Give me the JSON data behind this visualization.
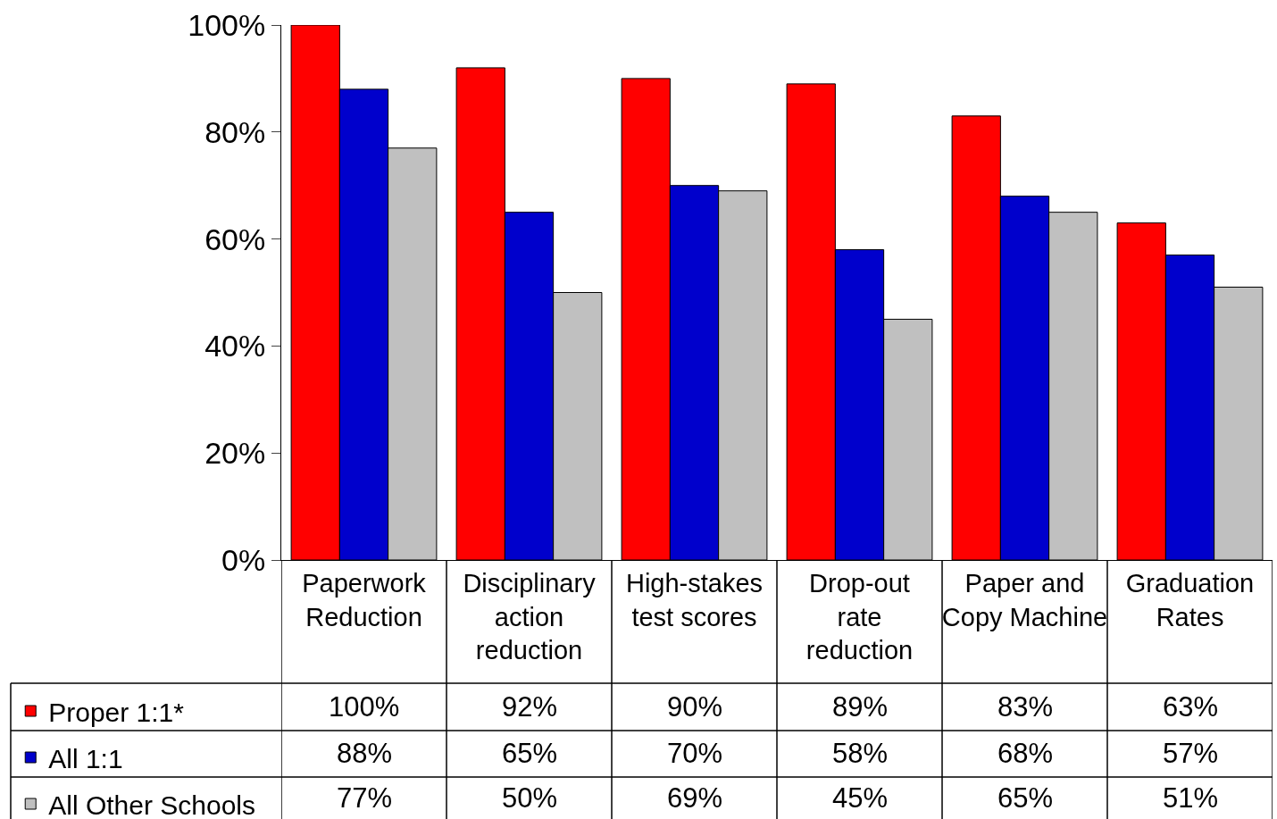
{
  "chart_data": {
    "type": "bar",
    "categories": [
      "Paperwork Reduction",
      "Disciplinary action reduction",
      "High-stakes test scores",
      "Drop-out rate reduction",
      "Paper and Copy Machine",
      "Graduation Rates"
    ],
    "series": [
      {
        "name": "Proper 1:1*",
        "color": "#ff0000",
        "values": [
          100,
          92,
          90,
          89,
          83,
          63
        ],
        "value_labels": [
          "100%",
          "92%",
          "90%",
          "89%",
          "83%",
          "63%"
        ]
      },
      {
        "name": "All 1:1",
        "color": "#0000cc",
        "values": [
          88,
          65,
          70,
          58,
          68,
          57
        ],
        "value_labels": [
          "88%",
          "65%",
          "70%",
          "58%",
          "68%",
          "57%"
        ]
      },
      {
        "name": "All Other Schools",
        "color": "#c0c0c0",
        "values": [
          77,
          50,
          69,
          45,
          65,
          51
        ],
        "value_labels": [
          "77%",
          "50%",
          "69%",
          "45%",
          "65%",
          "51%"
        ]
      }
    ],
    "ylim": [
      0,
      100
    ],
    "yticks": [
      {
        "value": 0,
        "label": "0%"
      },
      {
        "value": 20,
        "label": "20%"
      },
      {
        "value": 40,
        "label": "40%"
      },
      {
        "value": 60,
        "label": "60%"
      },
      {
        "value": 80,
        "label": "80%"
      },
      {
        "value": 100,
        "label": "100%"
      }
    ],
    "legend": "bottom left"
  }
}
